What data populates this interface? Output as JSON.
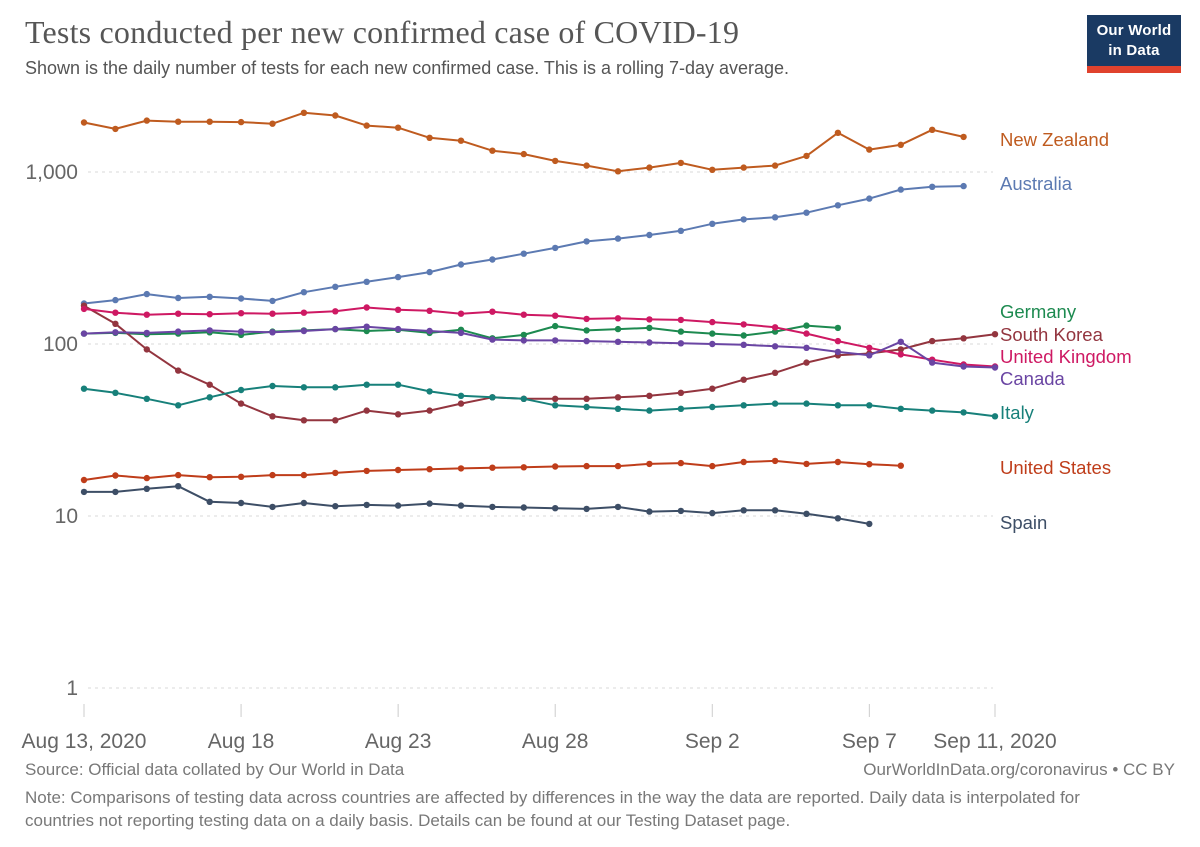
{
  "header": {
    "title": "Tests conducted per new confirmed case of COVID-19",
    "subtitle": "Shown is the daily number of tests for each new confirmed case. This is a rolling 7-day average.",
    "logo": {
      "line1": "Our World",
      "line2": "in Data",
      "bg": "#1a3a63",
      "bar": "#e0422d"
    }
  },
  "chart_data": {
    "type": "line",
    "y_scale": "log",
    "ylim": [
      1,
      2500
    ],
    "grid": true,
    "legend_position": "right",
    "x": [
      "Aug 13",
      "Aug 14",
      "Aug 15",
      "Aug 16",
      "Aug 17",
      "Aug 18",
      "Aug 19",
      "Aug 20",
      "Aug 21",
      "Aug 22",
      "Aug 23",
      "Aug 24",
      "Aug 25",
      "Aug 26",
      "Aug 27",
      "Aug 28",
      "Aug 29",
      "Aug 30",
      "Aug 31",
      "Sep 1",
      "Sep 2",
      "Sep 3",
      "Sep 4",
      "Sep 5",
      "Sep 6",
      "Sep 7",
      "Sep 8",
      "Sep 9",
      "Sep 10",
      "Sep 11"
    ],
    "x_ticks": [
      {
        "label": "Aug 13, 2020",
        "day": 0
      },
      {
        "label": "Aug 18",
        "day": 5
      },
      {
        "label": "Aug 23",
        "day": 10
      },
      {
        "label": "Aug 28",
        "day": 15
      },
      {
        "label": "Sep 2",
        "day": 20
      },
      {
        "label": "Sep 7",
        "day": 25
      },
      {
        "label": "Sep 11, 2020",
        "day": 29
      }
    ],
    "y_ticks": [
      {
        "label": "1,000",
        "value": 1000
      },
      {
        "label": "100",
        "value": 100
      },
      {
        "label": "10",
        "value": 10
      },
      {
        "label": "1",
        "value": 1
      }
    ],
    "series": [
      {
        "name": "New Zealand",
        "color": "#bf5b1f",
        "label_y": 140,
        "values": [
          1940,
          1780,
          1990,
          1960,
          1960,
          1950,
          1910,
          2210,
          2130,
          1860,
          1810,
          1580,
          1520,
          1330,
          1270,
          1160,
          1090,
          1010,
          1060,
          1130,
          1030,
          1060,
          1090,
          1240,
          1690,
          1350,
          1440,
          1760,
          1600,
          null
        ]
      },
      {
        "name": "Australia",
        "color": "#5c7ab2",
        "label_y": 184,
        "values": [
          172,
          180,
          195,
          185,
          188,
          184,
          178,
          200,
          215,
          230,
          245,
          262,
          290,
          310,
          335,
          362,
          395,
          410,
          430,
          455,
          500,
          530,
          545,
          580,
          640,
          700,
          790,
          820,
          828,
          null
        ]
      },
      {
        "name": "Germany",
        "color": "#1d8a50",
        "label_y": 312,
        "values": [
          115,
          116,
          114,
          115,
          117,
          113,
          118,
          120,
          122,
          119,
          121,
          116,
          121,
          108,
          113,
          127,
          120,
          122,
          124,
          118,
          115,
          112,
          118,
          128,
          124,
          null,
          null,
          null,
          null,
          null
        ]
      },
      {
        "name": "South Korea",
        "color": "#93353f",
        "label_y": 335,
        "values": [
          167,
          131,
          93,
          70,
          58,
          45,
          38,
          36,
          36,
          41,
          39,
          41,
          45,
          49,
          48,
          48,
          48,
          49,
          50,
          52,
          55,
          62,
          68,
          78,
          86,
          88,
          93,
          104,
          108,
          114
        ]
      },
      {
        "name": "United Kingdom",
        "color": "#ce1963",
        "label_y": 357,
        "values": [
          160,
          152,
          148,
          150,
          149,
          151,
          150,
          152,
          155,
          163,
          158,
          156,
          150,
          154,
          148,
          146,
          140,
          141,
          139,
          138,
          134,
          130,
          125,
          115,
          104,
          95,
          87,
          81,
          76,
          74
        ]
      },
      {
        "name": "Canada",
        "color": "#6a45a3",
        "label_y": 379,
        "values": [
          115,
          117,
          116,
          118,
          120,
          118,
          117,
          119,
          122,
          126,
          122,
          119,
          116,
          106,
          105,
          105,
          104,
          103,
          102,
          101,
          100,
          99,
          97,
          95,
          90,
          86,
          103,
          78,
          74,
          73
        ]
      },
      {
        "name": "Italy",
        "color": "#17807a",
        "label_y": 413,
        "values": [
          55,
          52,
          48,
          44,
          49,
          54,
          57,
          56,
          56,
          58,
          58,
          53,
          50,
          49,
          48,
          44,
          43,
          42,
          41,
          42,
          43,
          44,
          45,
          45,
          44,
          44,
          42,
          41,
          40,
          38
        ]
      },
      {
        "name": "United States",
        "color": "#bf3d1a",
        "label_y": 468,
        "values": [
          16.2,
          17.2,
          16.6,
          17.3,
          16.8,
          16.9,
          17.3,
          17.3,
          17.8,
          18.3,
          18.5,
          18.7,
          18.9,
          19.1,
          19.2,
          19.4,
          19.5,
          19.5,
          20.1,
          20.3,
          19.5,
          20.6,
          20.9,
          20.1,
          20.6,
          20.0,
          19.6,
          null,
          null,
          null
        ]
      },
      {
        "name": "Spain",
        "color": "#3d4e66",
        "label_y": 523,
        "values": [
          13.8,
          13.8,
          14.4,
          14.9,
          12.1,
          11.9,
          11.3,
          11.9,
          11.4,
          11.6,
          11.5,
          11.8,
          11.5,
          11.3,
          11.2,
          11.1,
          11.0,
          11.3,
          10.6,
          10.7,
          10.4,
          10.8,
          10.8,
          10.3,
          9.7,
          9.0,
          null,
          null,
          null,
          null
        ]
      }
    ]
  },
  "footer": {
    "source": "Source: Official data collated by Our World in Data",
    "attribution": "OurWorldInData.org/coronavirus • CC BY",
    "note_line1": "Note: Comparisons of testing data across countries are affected by differences in the way the data are reported. Daily data is interpolated for",
    "note_line2": "countries not reporting testing data on a daily basis. Details can be found at our Testing Dataset page."
  }
}
